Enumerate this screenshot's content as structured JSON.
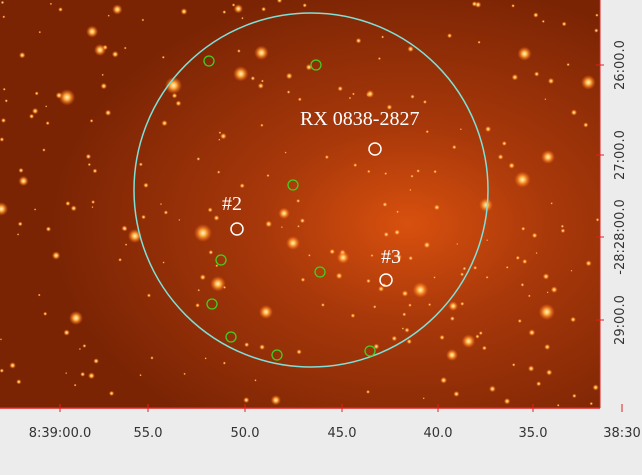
{
  "labels": [
    {
      "text": "RX 0838-2827"
    },
    {
      "text": "#2"
    },
    {
      "text": "#3"
    }
  ],
  "x_axis": {
    "ticks": [
      "8:39:00.0",
      "55.0",
      "50.0",
      "45.0",
      "40.0",
      "35.0",
      "38:30"
    ]
  },
  "y_axis": {
    "ticks": [
      "26:00.0",
      "27:00.0",
      "-28:28:00.0",
      "29:00.0"
    ]
  }
}
